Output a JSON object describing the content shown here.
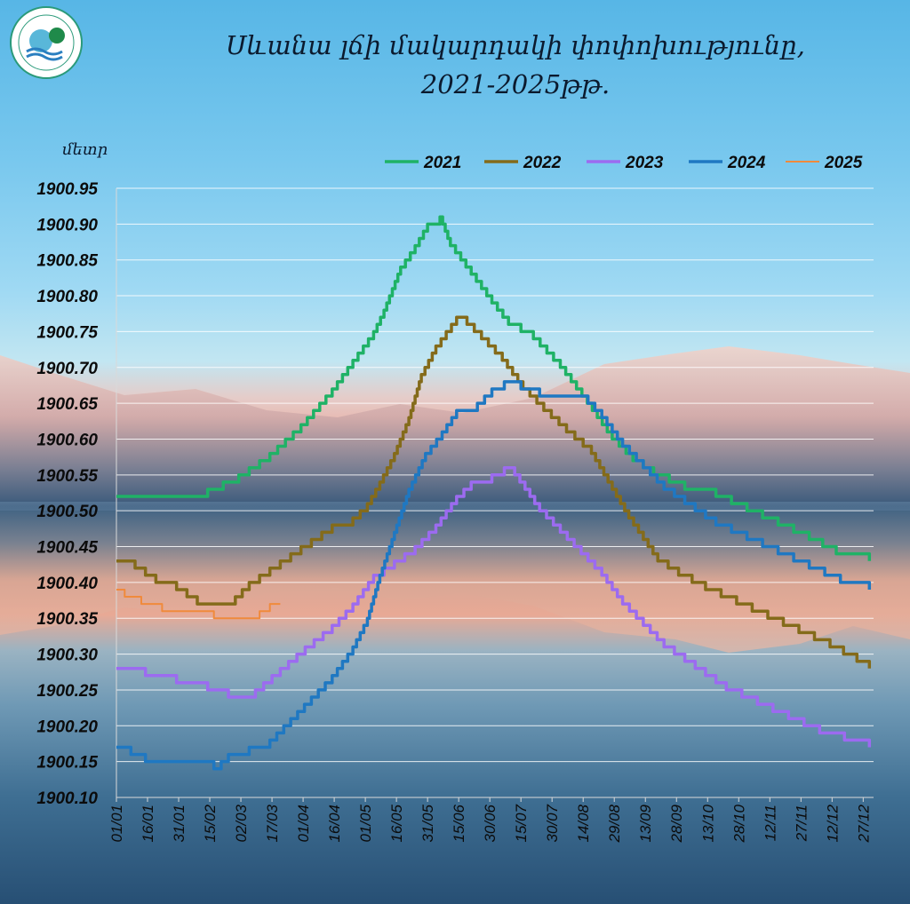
{
  "title_line1": "Սևանա լճի մակարդակի փոփոխությունը,",
  "title_line2": "2021-2025թթ.",
  "chart_data": {
    "type": "line",
    "title": "Սևանա լճի մակարդակի փոփոխությունը, 2021-2025թթ.",
    "ylabel": "մետր",
    "ylim": [
      1900.1,
      1900.95
    ],
    "y_ticks": [
      "1900.95",
      "1900.90",
      "1900.85",
      "1900.80",
      "1900.75",
      "1900.70",
      "1900.65",
      "1900.60",
      "1900.55",
      "1900.50",
      "1900.45",
      "1900.40",
      "1900.35",
      "1900.30",
      "1900.25",
      "1900.20",
      "1900.15",
      "1900.10"
    ],
    "x_ticks": [
      "01/01",
      "16/01",
      "31/01",
      "15/02",
      "02/03",
      "17/03",
      "01/04",
      "16/04",
      "01/05",
      "16/05",
      "31/05",
      "15/06",
      "30/06",
      "15/07",
      "30/07",
      "14/08",
      "29/08",
      "13/09",
      "28/09",
      "13/10",
      "28/10",
      "12/11",
      "27/11",
      "12/12",
      "27/12"
    ],
    "x_unit": "day_of_year",
    "grid": true,
    "legend_position": "top-right",
    "series": [
      {
        "name": "2021",
        "color": "#1fb266",
        "points": [
          [
            1,
            1900.52
          ],
          [
            30,
            1900.52
          ],
          [
            45,
            1900.53
          ],
          [
            60,
            1900.55
          ],
          [
            75,
            1900.58
          ],
          [
            90,
            1900.62
          ],
          [
            105,
            1900.67
          ],
          [
            115,
            1900.71
          ],
          [
            125,
            1900.75
          ],
          [
            130,
            1900.78
          ],
          [
            138,
            1900.84
          ],
          [
            145,
            1900.87
          ],
          [
            151,
            1900.9
          ],
          [
            157,
            1900.91
          ],
          [
            162,
            1900.87
          ],
          [
            172,
            1900.83
          ],
          [
            182,
            1900.79
          ],
          [
            190,
            1900.76
          ],
          [
            202,
            1900.74
          ],
          [
            215,
            1900.7
          ],
          [
            228,
            1900.65
          ],
          [
            240,
            1900.6
          ],
          [
            250,
            1900.57
          ],
          [
            260,
            1900.55
          ],
          [
            275,
            1900.53
          ],
          [
            290,
            1900.52
          ],
          [
            305,
            1900.5
          ],
          [
            320,
            1900.48
          ],
          [
            335,
            1900.46
          ],
          [
            348,
            1900.44
          ],
          [
            358,
            1900.44
          ],
          [
            364,
            1900.43
          ]
        ]
      },
      {
        "name": "2022",
        "color": "#846b1a",
        "points": [
          [
            1,
            1900.43
          ],
          [
            10,
            1900.42
          ],
          [
            20,
            1900.4
          ],
          [
            30,
            1900.39
          ],
          [
            40,
            1900.37
          ],
          [
            55,
            1900.37
          ],
          [
            65,
            1900.4
          ],
          [
            75,
            1900.42
          ],
          [
            85,
            1900.44
          ],
          [
            95,
            1900.46
          ],
          [
            105,
            1900.48
          ],
          [
            115,
            1900.49
          ],
          [
            122,
            1900.51
          ],
          [
            128,
            1900.54
          ],
          [
            135,
            1900.58
          ],
          [
            142,
            1900.63
          ],
          [
            148,
            1900.69
          ],
          [
            155,
            1900.73
          ],
          [
            160,
            1900.75
          ],
          [
            165,
            1900.77
          ],
          [
            170,
            1900.76
          ],
          [
            177,
            1900.74
          ],
          [
            187,
            1900.71
          ],
          [
            197,
            1900.67
          ],
          [
            207,
            1900.64
          ],
          [
            218,
            1900.61
          ],
          [
            230,
            1900.58
          ],
          [
            240,
            1900.53
          ],
          [
            248,
            1900.49
          ],
          [
            255,
            1900.46
          ],
          [
            262,
            1900.43
          ],
          [
            272,
            1900.41
          ],
          [
            285,
            1900.39
          ],
          [
            300,
            1900.37
          ],
          [
            315,
            1900.35
          ],
          [
            330,
            1900.33
          ],
          [
            345,
            1900.31
          ],
          [
            358,
            1900.29
          ],
          [
            364,
            1900.28
          ]
        ]
      },
      {
        "name": "2023",
        "color": "#9c6bf0",
        "points": [
          [
            1,
            1900.28
          ],
          [
            15,
            1900.27
          ],
          [
            30,
            1900.26
          ],
          [
            45,
            1900.25
          ],
          [
            55,
            1900.24
          ],
          [
            68,
            1900.25
          ],
          [
            80,
            1900.28
          ],
          [
            92,
            1900.31
          ],
          [
            105,
            1900.34
          ],
          [
            115,
            1900.37
          ],
          [
            125,
            1900.41
          ],
          [
            135,
            1900.43
          ],
          [
            145,
            1900.45
          ],
          [
            155,
            1900.48
          ],
          [
            165,
            1900.52
          ],
          [
            172,
            1900.54
          ],
          [
            182,
            1900.55
          ],
          [
            188,
            1900.56
          ],
          [
            193,
            1900.55
          ],
          [
            198,
            1900.53
          ],
          [
            205,
            1900.5
          ],
          [
            215,
            1900.47
          ],
          [
            225,
            1900.44
          ],
          [
            235,
            1900.41
          ],
          [
            245,
            1900.37
          ],
          [
            255,
            1900.34
          ],
          [
            265,
            1900.31
          ],
          [
            280,
            1900.28
          ],
          [
            295,
            1900.25
          ],
          [
            310,
            1900.23
          ],
          [
            325,
            1900.21
          ],
          [
            340,
            1900.19
          ],
          [
            352,
            1900.18
          ],
          [
            364,
            1900.17
          ]
        ]
      },
      {
        "name": "2024",
        "color": "#1f78c2",
        "points": [
          [
            1,
            1900.17
          ],
          [
            8,
            1900.16
          ],
          [
            15,
            1900.15
          ],
          [
            40,
            1900.15
          ],
          [
            48,
            1900.14
          ],
          [
            55,
            1900.16
          ],
          [
            65,
            1900.17
          ],
          [
            75,
            1900.18
          ],
          [
            85,
            1900.21
          ],
          [
            95,
            1900.24
          ],
          [
            105,
            1900.27
          ],
          [
            115,
            1900.31
          ],
          [
            122,
            1900.35
          ],
          [
            128,
            1900.41
          ],
          [
            135,
            1900.47
          ],
          [
            142,
            1900.53
          ],
          [
            150,
            1900.58
          ],
          [
            158,
            1900.61
          ],
          [
            165,
            1900.64
          ],
          [
            175,
            1900.65
          ],
          [
            182,
            1900.67
          ],
          [
            188,
            1900.68
          ],
          [
            196,
            1900.67
          ],
          [
            205,
            1900.66
          ],
          [
            225,
            1900.66
          ],
          [
            235,
            1900.63
          ],
          [
            245,
            1900.59
          ],
          [
            255,
            1900.56
          ],
          [
            265,
            1900.53
          ],
          [
            275,
            1900.51
          ],
          [
            290,
            1900.48
          ],
          [
            305,
            1900.46
          ],
          [
            320,
            1900.44
          ],
          [
            335,
            1900.42
          ],
          [
            350,
            1900.4
          ],
          [
            364,
            1900.39
          ]
        ]
      },
      {
        "name": "2025",
        "color": "#f08a3c",
        "points": [
          [
            1,
            1900.39
          ],
          [
            5,
            1900.38
          ],
          [
            13,
            1900.37
          ],
          [
            23,
            1900.36
          ],
          [
            40,
            1900.36
          ],
          [
            48,
            1900.35
          ],
          [
            58,
            1900.35
          ],
          [
            70,
            1900.36
          ],
          [
            75,
            1900.37
          ],
          [
            80,
            1900.37
          ]
        ]
      }
    ]
  }
}
